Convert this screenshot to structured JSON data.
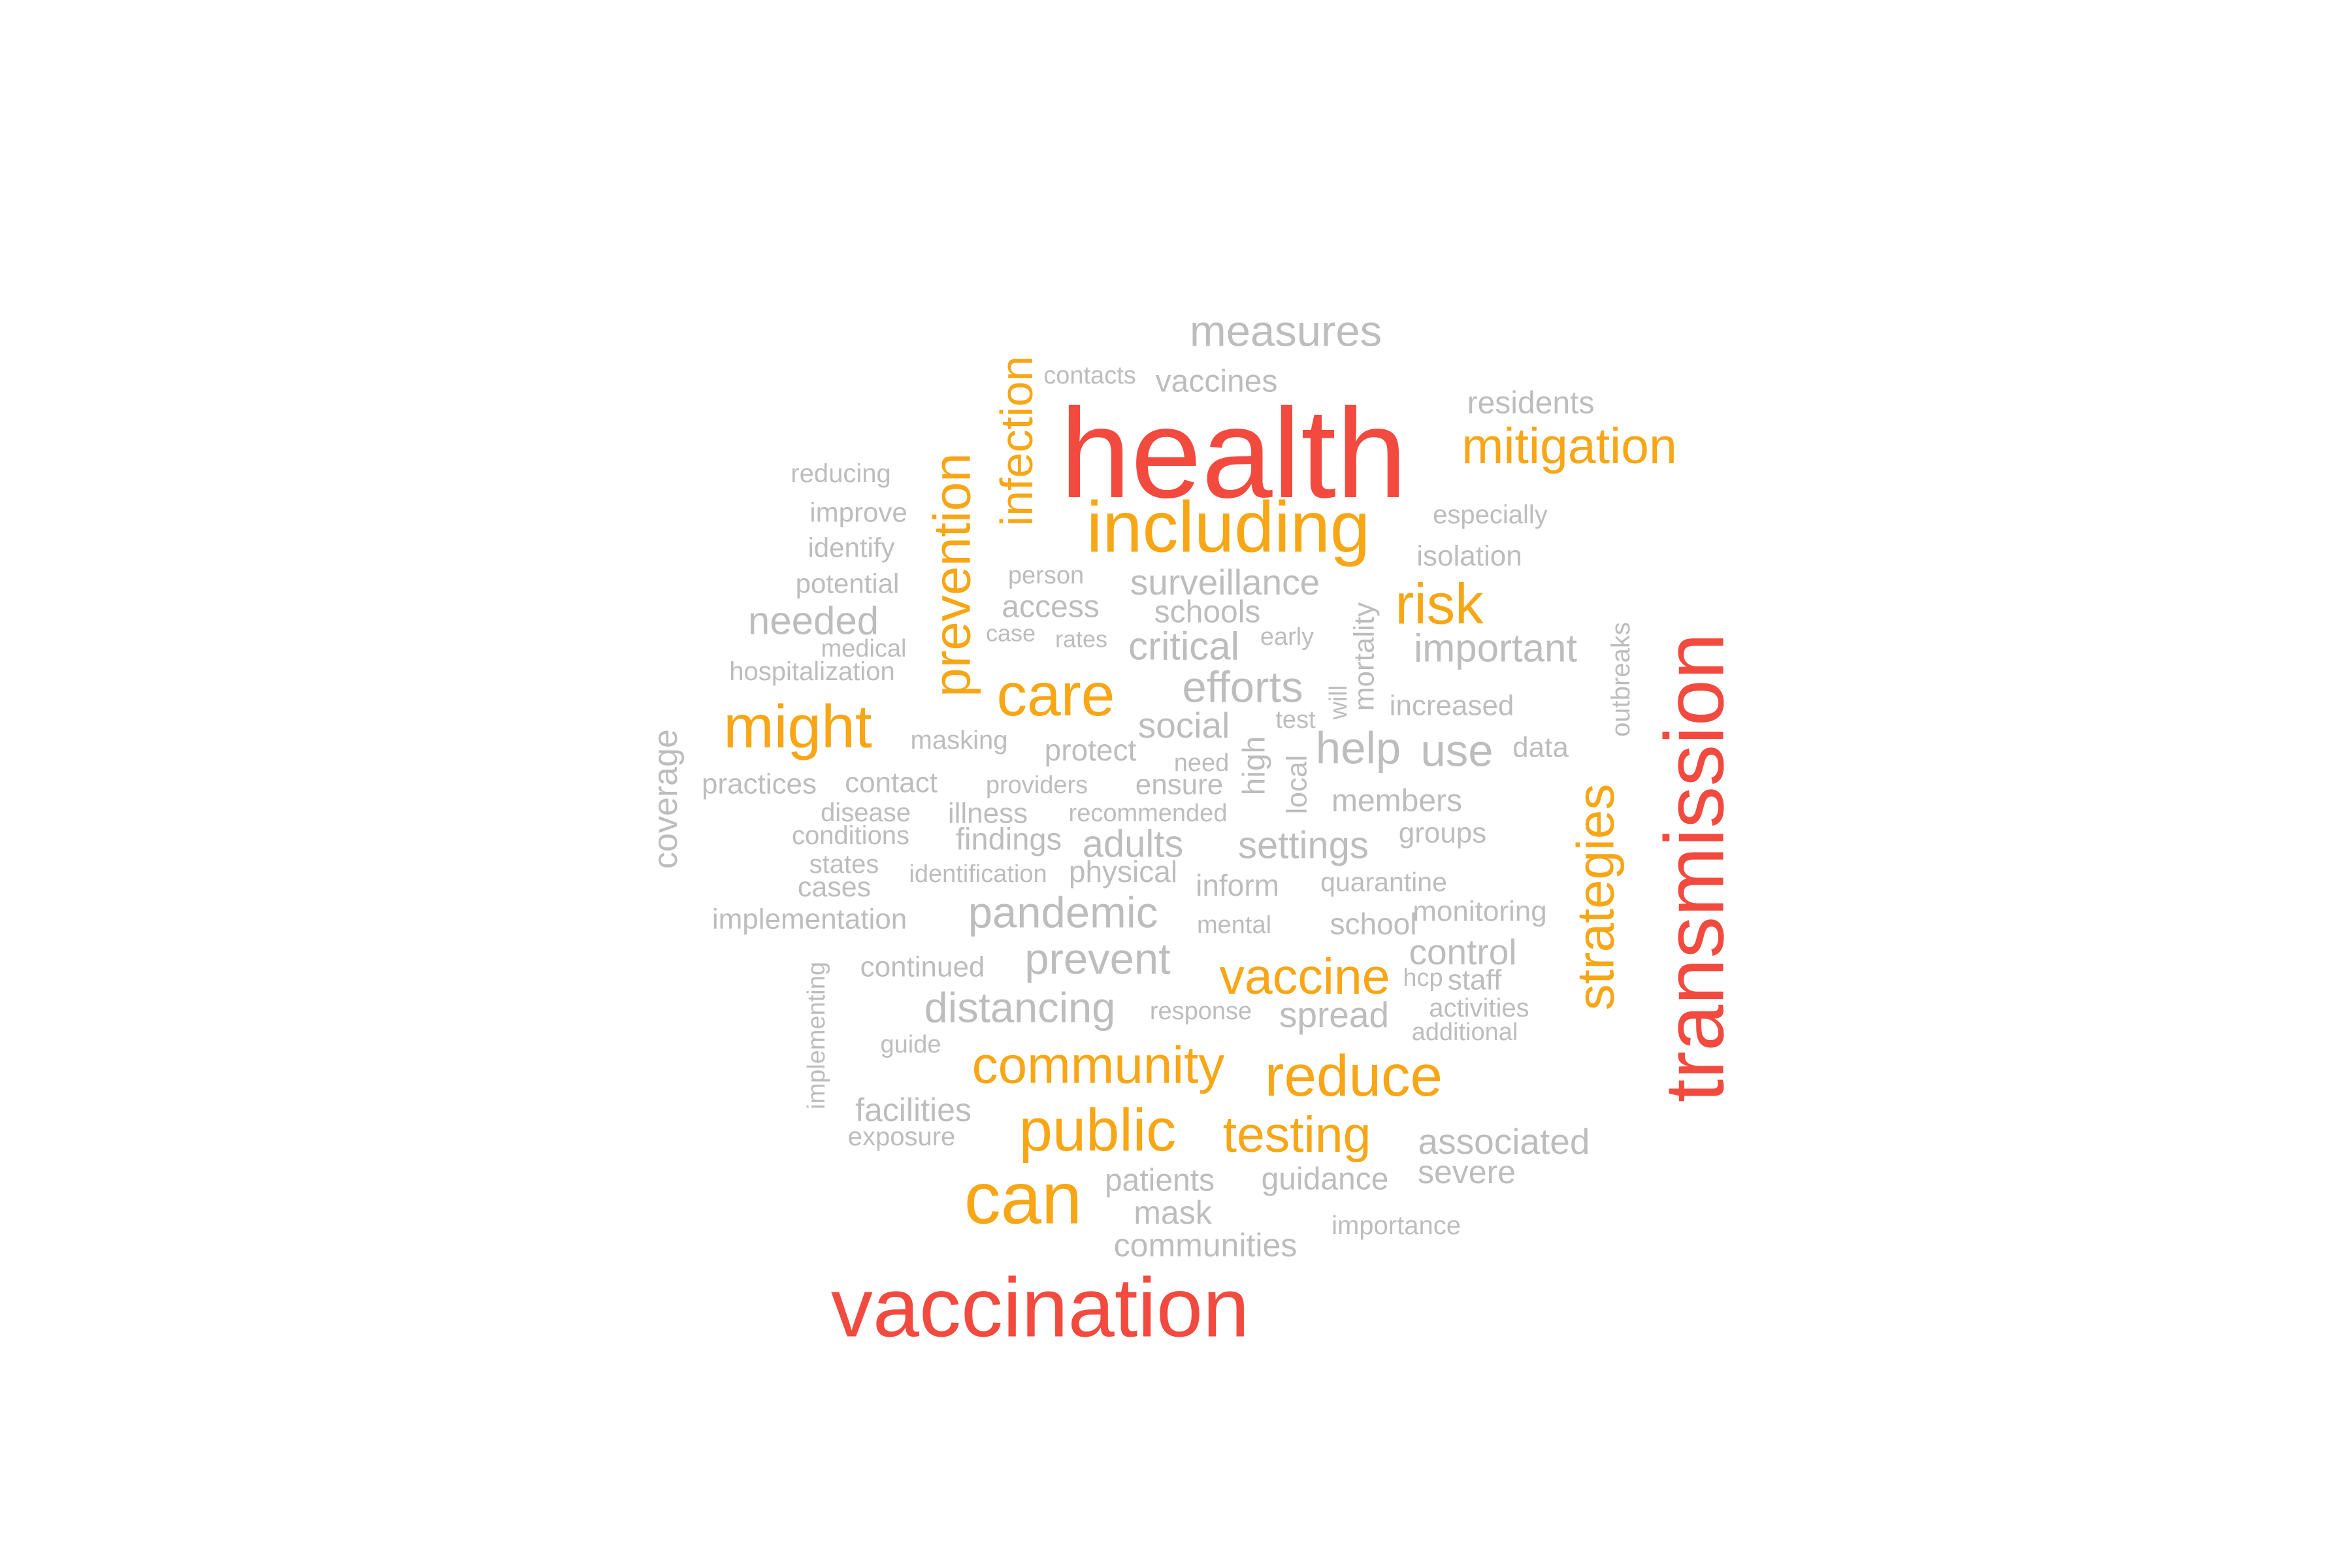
{
  "palette": {
    "red": "#f24a3f",
    "orange": "#f7a615",
    "gray": "#bdbdbd"
  },
  "words": [
    {
      "text": "health",
      "color": "red"
    },
    {
      "text": "vaccination",
      "color": "red"
    },
    {
      "text": "transmission",
      "color": "red"
    },
    {
      "text": "including",
      "color": "orange"
    },
    {
      "text": "can",
      "color": "orange"
    },
    {
      "text": "prevention",
      "color": "orange"
    },
    {
      "text": "public",
      "color": "orange"
    },
    {
      "text": "strategies",
      "color": "orange"
    },
    {
      "text": "might",
      "color": "orange"
    },
    {
      "text": "care",
      "color": "orange"
    },
    {
      "text": "community",
      "color": "orange"
    },
    {
      "text": "reduce",
      "color": "orange"
    },
    {
      "text": "infection",
      "color": "orange"
    },
    {
      "text": "risk",
      "color": "orange"
    },
    {
      "text": "testing",
      "color": "orange"
    },
    {
      "text": "vaccine",
      "color": "orange"
    },
    {
      "text": "mitigation",
      "color": "orange"
    },
    {
      "text": "measures",
      "color": "gray"
    },
    {
      "text": "pandemic",
      "color": "gray"
    },
    {
      "text": "efforts",
      "color": "gray"
    },
    {
      "text": "prevent",
      "color": "gray"
    },
    {
      "text": "distancing",
      "color": "gray"
    },
    {
      "text": "needed",
      "color": "gray"
    },
    {
      "text": "important",
      "color": "gray"
    },
    {
      "text": "surveillance",
      "color": "gray"
    },
    {
      "text": "critical",
      "color": "gray"
    },
    {
      "text": "help",
      "color": "gray"
    },
    {
      "text": "use",
      "color": "gray"
    },
    {
      "text": "settings",
      "color": "gray"
    },
    {
      "text": "adults",
      "color": "gray"
    },
    {
      "text": "control",
      "color": "gray"
    },
    {
      "text": "spread",
      "color": "gray"
    },
    {
      "text": "associated",
      "color": "gray"
    },
    {
      "text": "coverage",
      "color": "gray"
    },
    {
      "text": "social",
      "color": "gray"
    },
    {
      "text": "members",
      "color": "gray"
    },
    {
      "text": "facilities",
      "color": "gray"
    },
    {
      "text": "patients",
      "color": "gray"
    },
    {
      "text": "severe",
      "color": "gray"
    },
    {
      "text": "communities",
      "color": "gray"
    },
    {
      "text": "guidance",
      "color": "gray"
    },
    {
      "text": "mask",
      "color": "gray"
    },
    {
      "text": "residents",
      "color": "gray"
    },
    {
      "text": "vaccines",
      "color": "gray"
    },
    {
      "text": "access",
      "color": "gray"
    },
    {
      "text": "schools",
      "color": "gray"
    },
    {
      "text": "protect",
      "color": "gray"
    },
    {
      "text": "practices",
      "color": "gray"
    },
    {
      "text": "contact",
      "color": "gray"
    },
    {
      "text": "implementation",
      "color": "gray"
    },
    {
      "text": "findings",
      "color": "gray"
    },
    {
      "text": "cases",
      "color": "gray"
    },
    {
      "text": "continued",
      "color": "gray"
    },
    {
      "text": "high",
      "color": "gray"
    },
    {
      "text": "mortality",
      "color": "gray"
    },
    {
      "text": "outbreaks",
      "color": "gray"
    },
    {
      "text": "school",
      "color": "gray"
    },
    {
      "text": "inform",
      "color": "gray"
    },
    {
      "text": "physical",
      "color": "gray"
    },
    {
      "text": "increased",
      "color": "gray"
    },
    {
      "text": "monitoring",
      "color": "gray"
    },
    {
      "text": "isolation",
      "color": "gray"
    },
    {
      "text": "groups",
      "color": "gray"
    },
    {
      "text": "masking",
      "color": "gray"
    },
    {
      "text": "local",
      "color": "gray"
    },
    {
      "text": "illness",
      "color": "gray"
    },
    {
      "text": "ensure",
      "color": "gray"
    },
    {
      "text": "data",
      "color": "gray"
    },
    {
      "text": "staff",
      "color": "gray"
    },
    {
      "text": "quarantine",
      "color": "gray"
    },
    {
      "text": "improve",
      "color": "gray"
    },
    {
      "text": "reducing",
      "color": "gray"
    },
    {
      "text": "identify",
      "color": "gray"
    },
    {
      "text": "potential",
      "color": "gray"
    },
    {
      "text": "disease",
      "color": "gray"
    },
    {
      "text": "conditions",
      "color": "gray"
    },
    {
      "text": "states",
      "color": "gray"
    },
    {
      "text": "hospitalization",
      "color": "gray"
    },
    {
      "text": "exposure",
      "color": "gray"
    },
    {
      "text": "importance",
      "color": "gray"
    },
    {
      "text": "especially",
      "color": "gray"
    },
    {
      "text": "activities",
      "color": "gray"
    },
    {
      "text": "implementing",
      "color": "gray"
    },
    {
      "text": "medical",
      "color": "gray"
    },
    {
      "text": "recommended",
      "color": "gray"
    },
    {
      "text": "identification",
      "color": "gray"
    },
    {
      "text": "providers",
      "color": "gray"
    },
    {
      "text": "person",
      "color": "gray"
    },
    {
      "text": "contacts",
      "color": "gray"
    },
    {
      "text": "additional",
      "color": "gray"
    },
    {
      "text": "response",
      "color": "gray"
    },
    {
      "text": "guide",
      "color": "gray"
    },
    {
      "text": "mental",
      "color": "gray"
    },
    {
      "text": "need",
      "color": "gray"
    },
    {
      "text": "early",
      "color": "gray"
    },
    {
      "text": "rates",
      "color": "gray"
    },
    {
      "text": "case",
      "color": "gray"
    },
    {
      "text": "will",
      "color": "gray"
    },
    {
      "text": "test",
      "color": "gray"
    },
    {
      "text": "hcp",
      "color": "gray"
    }
  ]
}
